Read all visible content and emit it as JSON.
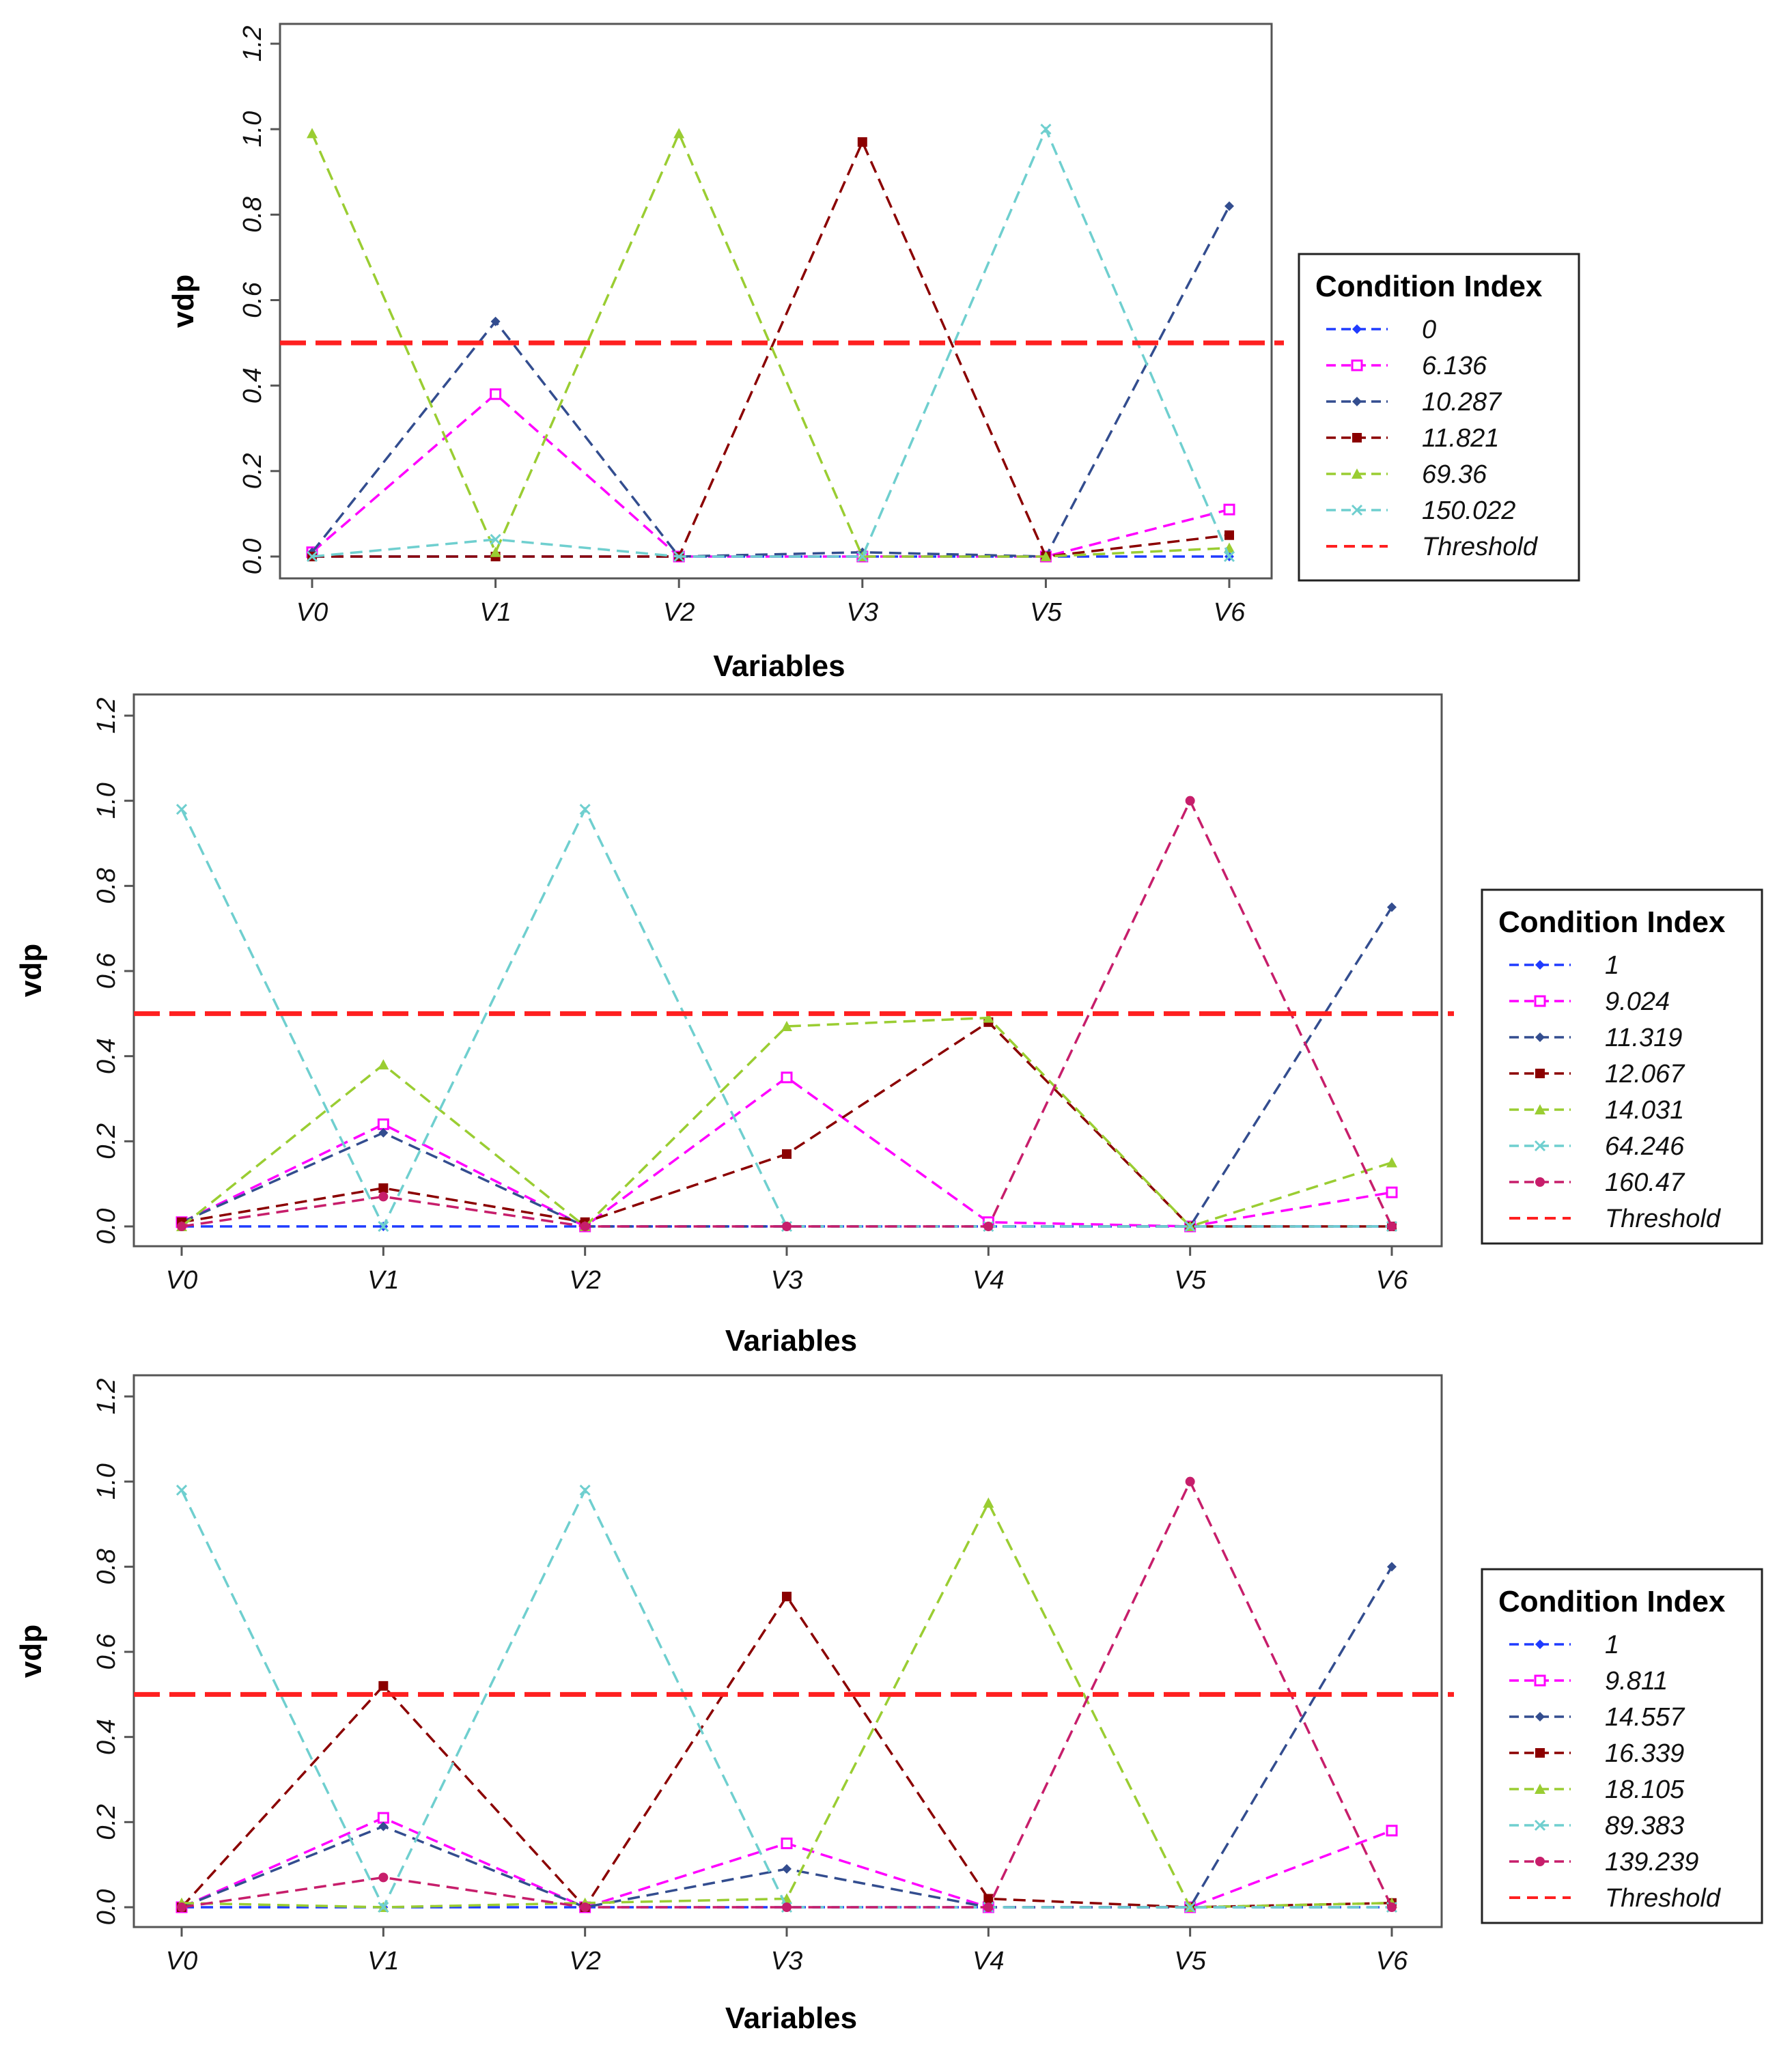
{
  "chart_data": [
    {
      "type": "line",
      "categories": [
        "V0",
        "V1",
        "V2",
        "V3",
        "V5",
        "V6"
      ],
      "xlabel": "Variables",
      "ylabel": "vdp",
      "ylim": [
        0,
        1.2
      ],
      "yticks": [
        "0.0",
        "0.2",
        "0.4",
        "0.6",
        "0.8",
        "1.0",
        "1.2"
      ],
      "threshold": 0.5,
      "legend_title": "Condition Index",
      "legend_position": "right",
      "threshold_label": "Threshold",
      "threshold_color": "#ff2020",
      "series": [
        {
          "name": "0",
          "color": "#1f3bff",
          "marker": "diamond",
          "values": [
            0.0,
            0.0,
            0.0,
            0.0,
            0.0,
            0.0
          ]
        },
        {
          "name": "6.136",
          "color": "#ff00ff",
          "marker": "square-open",
          "values": [
            0.01,
            0.38,
            0.0,
            0.0,
            0.0,
            0.11
          ]
        },
        {
          "name": "10.287",
          "color": "#334d8f",
          "marker": "diamond",
          "values": [
            0.01,
            0.55,
            0.0,
            0.01,
            0.0,
            0.82
          ]
        },
        {
          "name": "11.821",
          "color": "#8b0000",
          "marker": "square",
          "values": [
            0.0,
            0.0,
            0.0,
            0.97,
            0.0,
            0.05
          ]
        },
        {
          "name": "69.36",
          "color": "#9acd32",
          "marker": "triangle",
          "values": [
            0.99,
            0.01,
            0.99,
            0.0,
            0.0,
            0.02
          ]
        },
        {
          "name": "150.022",
          "color": "#6fcfcf",
          "marker": "x",
          "values": [
            0.0,
            0.04,
            0.0,
            0.0,
            1.0,
            0.0
          ]
        }
      ]
    },
    {
      "type": "line",
      "categories": [
        "V0",
        "V1",
        "V2",
        "V3",
        "V4",
        "V5",
        "V6"
      ],
      "xlabel": "Variables",
      "ylabel": "vdp",
      "ylim": [
        0,
        1.2
      ],
      "yticks": [
        "0.0",
        "0.2",
        "0.4",
        "0.6",
        "0.8",
        "1.0",
        "1.2"
      ],
      "threshold": 0.5,
      "legend_title": "Condition Index",
      "legend_position": "right",
      "threshold_label": "Threshold",
      "threshold_color": "#ff2020",
      "series": [
        {
          "name": "1",
          "color": "#1f3bff",
          "marker": "diamond",
          "values": [
            0.0,
            0.0,
            0.0,
            0.0,
            0.0,
            0.0,
            0.0
          ]
        },
        {
          "name": "9.024",
          "color": "#ff00ff",
          "marker": "square-open",
          "values": [
            0.01,
            0.24,
            0.0,
            0.35,
            0.01,
            0.0,
            0.08
          ]
        },
        {
          "name": "11.319",
          "color": "#334d8f",
          "marker": "diamond",
          "values": [
            0.01,
            0.22,
            0.0,
            0.0,
            0.0,
            0.0,
            0.75
          ]
        },
        {
          "name": "12.067",
          "color": "#8b0000",
          "marker": "square",
          "values": [
            0.01,
            0.09,
            0.01,
            0.17,
            0.48,
            0.0,
            0.0
          ]
        },
        {
          "name": "14.031",
          "color": "#9acd32",
          "marker": "triangle",
          "values": [
            0.0,
            0.38,
            0.0,
            0.47,
            0.49,
            0.0,
            0.15
          ]
        },
        {
          "name": "64.246",
          "color": "#6fcfcf",
          "marker": "x",
          "values": [
            0.98,
            0.0,
            0.98,
            0.0,
            0.0,
            0.0,
            0.0
          ]
        },
        {
          "name": "160.47",
          "color": "#c71e6b",
          "marker": "circle",
          "values": [
            0.0,
            0.07,
            0.0,
            0.0,
            0.0,
            1.0,
            0.0
          ]
        }
      ]
    },
    {
      "type": "line",
      "categories": [
        "V0",
        "V1",
        "V2",
        "V3",
        "V4",
        "V5",
        "V6"
      ],
      "xlabel": "Variables",
      "ylabel": "vdp",
      "ylim": [
        0,
        1.2
      ],
      "yticks": [
        "0.0",
        "0.2",
        "0.4",
        "0.6",
        "0.8",
        "1.0",
        "1.2"
      ],
      "threshold": 0.5,
      "legend_title": "Condition Index",
      "legend_position": "right",
      "threshold_label": "Threshold",
      "threshold_color": "#ff2020",
      "series": [
        {
          "name": "1",
          "color": "#1f3bff",
          "marker": "diamond",
          "values": [
            0.0,
            0.0,
            0.0,
            0.0,
            0.0,
            0.0,
            0.0
          ]
        },
        {
          "name": "9.811",
          "color": "#ff00ff",
          "marker": "square-open",
          "values": [
            0.0,
            0.21,
            0.0,
            0.15,
            0.0,
            0.0,
            0.18
          ]
        },
        {
          "name": "14.557",
          "color": "#334d8f",
          "marker": "diamond",
          "values": [
            0.0,
            0.19,
            0.0,
            0.09,
            0.0,
            0.0,
            0.8
          ]
        },
        {
          "name": "16.339",
          "color": "#8b0000",
          "marker": "square",
          "values": [
            0.0,
            0.52,
            0.0,
            0.73,
            0.02,
            0.0,
            0.01
          ]
        },
        {
          "name": "18.105",
          "color": "#9acd32",
          "marker": "triangle",
          "values": [
            0.01,
            0.0,
            0.01,
            0.02,
            0.95,
            0.0,
            0.01
          ]
        },
        {
          "name": "89.383",
          "color": "#6fcfcf",
          "marker": "x",
          "values": [
            0.98,
            0.0,
            0.98,
            0.0,
            0.0,
            0.0,
            0.0
          ]
        },
        {
          "name": "139.239",
          "color": "#c71e6b",
          "marker": "circle",
          "values": [
            0.0,
            0.07,
            0.0,
            0.0,
            0.0,
            1.0,
            0.0
          ]
        }
      ]
    }
  ]
}
